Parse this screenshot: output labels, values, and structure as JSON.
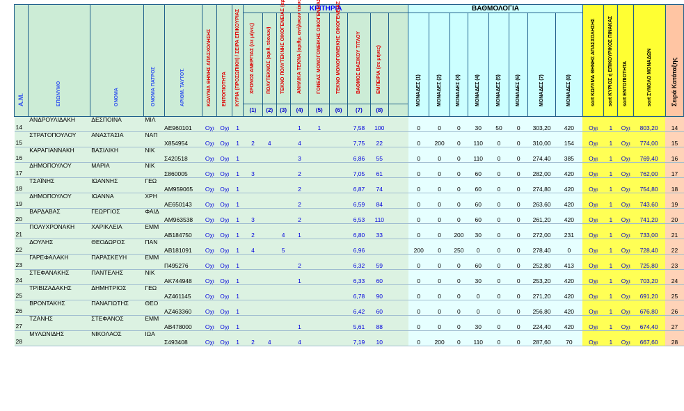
{
  "headers": {
    "am": "Α.Μ.",
    "eponymo": "ΕΠΩΝΥΜΟ",
    "onoma": "ΟΝΟΜΑ",
    "onoma_patros": "ΟΝΟΜΑ ΠΑΤΡΟΣ",
    "arith_taut": "ΑΡΙΘΜ. ΤΑΥΤΟΤ.",
    "kolyma": "ΚΩΛΥΜΑ ΘΗΝΗΣ ΑΠΑΣΧΟΛΗΣΗΣ",
    "entopiotita": "ΕΝΤΟΠΙΟΤΗΤΑ",
    "kyria": "ΚΥΡΙΑ (ΠΡΟΣΩΠΙΚΗ) / ΣΕΙΡΑ ΕΠΙΚΟΥΡΙΑΣ",
    "kritiria_group": "ΚΡΙΤΗΡΙΑ",
    "vathmologia_group": "ΒΑΘΜΟΛΟΓΙΑ",
    "krit": [
      "ΧΡΟΝΟΣ ΑΝΕΡΓΙΑΣ (σε μήνες)",
      "ΠΟΛΥΤΕΚΝΟΣ (αριθ. τέκνων)",
      "ΤΕΚΝΟ ΠΟΛΥΤΕΚΝΗΣ ΟΙΚΟΓΕΝΕΙΑΣ (αρ. τέκνων)",
      "ΑΝΗΛΙΚΑ ΤΕΚΝΑ (αριθμ. ανήλικων τέκνων)",
      "ΓΟΝΕΑΣ ΜΟΝΟΓΟΝΕΙΚΗΣ ΟΙΚΟΓΕΝΕΙΑΣ (αριθμ. τέκνων)",
      "ΤΕΚΝΟ ΜΟΝΟΓΟΝΕΙΚΗΣ ΟΙΚΟΓΕΝΕΙΑΣ",
      "ΒΑΘΜΟΣ ΒΑΣΙΚΟΥ ΤΙΤΛΟΥ",
      "ΕΜΠΕΙΡΙΑ (σε μήνες)"
    ],
    "krit_nums": [
      "(1)",
      "(2)",
      "(3)",
      "(4)",
      "(5)",
      "(6)",
      "(7)",
      "(8)"
    ],
    "monades": [
      "ΜΟΝΑΔΕΣ (1)",
      "ΜΟΝΑΔΕΣ (2)",
      "ΜΟΝΑΔΕΣ (3)",
      "ΜΟΝΑΔΕΣ (4)",
      "ΜΟΝΑΔΕΣ (5)",
      "ΜΟΝΑΔΕΣ (6)",
      "ΜΟΝΑΔΕΣ (7)",
      "ΜΟΝΑΔΕΣ (8)"
    ],
    "sort_kolyma": "sort ΚΩΛΥΜΑ ΘΗΝΗΣ ΑΠΑΣΧΟΛΗΣΗΣ",
    "sort_kyrios": "sort ΚΥΡΙΟΣ ή ΕΠΙΚΟΥΡΙΚΟΣ ΠΙΝΑΚΑΣ",
    "sort_entop": "sort ΕΝΤΟΠΙΟΤΗΤΑ",
    "sort_synolo": "sort ΣΥΝΟΛΟ ΜΟΝΑΔΩΝ",
    "seira": "Σειρά Κατάταξης"
  },
  "rows": [
    {
      "am": "14",
      "epon": "ΑΝΔΡΟΥΛΙΔΑΚΗ",
      "onoma": "ΔΕΣΠΟΙΝΑ",
      "patros": "ΜΙΛ",
      "taut": "ΑΕ960101",
      "kol": "Οχι",
      "ent": "Οχι",
      "kyr": "1",
      "k1": "",
      "k2": "",
      "k3": "",
      "k4": "1",
      "k5": "1",
      "k6": "",
      "k7": "7,58",
      "k8": "100",
      "m1": "0",
      "m2": "0",
      "m3": "0",
      "m4": "30",
      "m5": "50",
      "m6": "0",
      "m7": "303,20",
      "m8": "420",
      "s1": "Οχι",
      "s2": "1",
      "s3": "Οχι",
      "tot": "803,20",
      "rank": "14"
    },
    {
      "am": "15",
      "epon": "ΣΤΡΑΤΟΠΟΥΛΟΥ",
      "onoma": "ΑΝΑΣΤΑΣΙΑ",
      "patros": "ΝΑΠ",
      "taut": "Χ854954",
      "kol": "Οχι",
      "ent": "Οχι",
      "kyr": "1",
      "k1": "2",
      "k2": "4",
      "k3": "",
      "k4": "4",
      "k5": "",
      "k6": "",
      "k7": "7,75",
      "k8": "22",
      "m1": "0",
      "m2": "200",
      "m3": "0",
      "m4": "110",
      "m5": "0",
      "m6": "0",
      "m7": "310,00",
      "m8": "154",
      "s1": "Οχι",
      "s2": "1",
      "s3": "Οχι",
      "tot": "774,00",
      "rank": "15"
    },
    {
      "am": "16",
      "epon": "ΚΑΡΑΓΙΑΝΝΑΚΗ",
      "onoma": "ΒΑΣΙΛΙΚΗ",
      "patros": "ΝΙΚ",
      "taut": "Σ420518",
      "kol": "Οχι",
      "ent": "Οχι",
      "kyr": "1",
      "k1": "",
      "k2": "",
      "k3": "",
      "k4": "3",
      "k5": "",
      "k6": "",
      "k7": "6,86",
      "k8": "55",
      "m1": "0",
      "m2": "0",
      "m3": "0",
      "m4": "110",
      "m5": "0",
      "m6": "0",
      "m7": "274,40",
      "m8": "385",
      "s1": "Οχι",
      "s2": "1",
      "s3": "Οχι",
      "tot": "769,40",
      "rank": "16"
    },
    {
      "am": "17",
      "epon": "ΔΗΜΟΠΟΥΛΟΥ",
      "onoma": "ΜΑΡΙΑ",
      "patros": "ΝΙΚ",
      "taut": "Σ860005",
      "kol": "Οχι",
      "ent": "Οχι",
      "kyr": "1",
      "k1": "3",
      "k2": "",
      "k3": "",
      "k4": "2",
      "k5": "",
      "k6": "",
      "k7": "7,05",
      "k8": "61",
      "m1": "0",
      "m2": "0",
      "m3": "0",
      "m4": "60",
      "m5": "0",
      "m6": "0",
      "m7": "282,00",
      "m8": "420",
      "s1": "Οχι",
      "s2": "1",
      "s3": "Οχι",
      "tot": "762,00",
      "rank": "17"
    },
    {
      "am": "18",
      "epon": "ΤΣΑΪΝΗΣ",
      "onoma": "ΙΩΑΝΝΗΣ",
      "patros": "ΓΕΩ",
      "taut": "ΑΜ959065",
      "kol": "Οχι",
      "ent": "Οχι",
      "kyr": "1",
      "k1": "",
      "k2": "",
      "k3": "",
      "k4": "2",
      "k5": "",
      "k6": "",
      "k7": "6,87",
      "k8": "74",
      "m1": "0",
      "m2": "0",
      "m3": "0",
      "m4": "60",
      "m5": "0",
      "m6": "0",
      "m7": "274,80",
      "m8": "420",
      "s1": "Οχι",
      "s2": "1",
      "s3": "Οχι",
      "tot": "754,80",
      "rank": "18"
    },
    {
      "am": "19",
      "epon": "ΔΗΜΟΠΟΥΛΟΥ",
      "onoma": "ΙΩΑΝΝΑ",
      "patros": "ΧΡΗ",
      "taut": "ΑΕ650143",
      "kol": "Οχι",
      "ent": "Οχι",
      "kyr": "1",
      "k1": "",
      "k2": "",
      "k3": "",
      "k4": "2",
      "k5": "",
      "k6": "",
      "k7": "6,59",
      "k8": "84",
      "m1": "0",
      "m2": "0",
      "m3": "0",
      "m4": "60",
      "m5": "0",
      "m6": "0",
      "m7": "263,60",
      "m8": "420",
      "s1": "Οχι",
      "s2": "1",
      "s3": "Οχι",
      "tot": "743,60",
      "rank": "19"
    },
    {
      "am": "20",
      "epon": "ΒΑΡΔΑΒΑΣ",
      "onoma": "ΓΕΩΡΓΙΟΣ",
      "patros": "ΦΑΙΔ",
      "taut": "ΑΜ963538",
      "kol": "Οχι",
      "ent": "Οχι",
      "kyr": "1",
      "k1": "3",
      "k2": "",
      "k3": "",
      "k4": "2",
      "k5": "",
      "k6": "",
      "k7": "6,53",
      "k8": "110",
      "m1": "0",
      "m2": "0",
      "m3": "0",
      "m4": "60",
      "m5": "0",
      "m6": "0",
      "m7": "261,20",
      "m8": "420",
      "s1": "Οχι",
      "s2": "1",
      "s3": "Οχι",
      "tot": "741,20",
      "rank": "20"
    },
    {
      "am": "21",
      "epon": "ΠΟΛΥΧΡΟΝΑΚΗ",
      "onoma": "ΧΑΡΙΚΛΕΙΑ",
      "patros": "ΕΜΜ",
      "taut": "ΑΒ184750",
      "kol": "Οχι",
      "ent": "Οχι",
      "kyr": "1",
      "k1": "2",
      "k2": "",
      "k3": "4",
      "k4": "1",
      "k5": "",
      "k6": "",
      "k7": "6,80",
      "k8": "33",
      "m1": "0",
      "m2": "0",
      "m3": "200",
      "m4": "30",
      "m5": "0",
      "m6": "0",
      "m7": "272,00",
      "m8": "231",
      "s1": "Οχι",
      "s2": "1",
      "s3": "Οχι",
      "tot": "733,00",
      "rank": "21"
    },
    {
      "am": "22",
      "epon": "ΔΟΥΛΗΣ",
      "onoma": "ΘΕΟΔΩΡΟΣ",
      "patros": "ΠΑΝ",
      "taut": "ΑΒ181091",
      "kol": "Οχι",
      "ent": "Οχι",
      "kyr": "1",
      "k1": "4",
      "k2": "",
      "k3": "5",
      "k4": "",
      "k5": "",
      "k6": "",
      "k7": "6,96",
      "k8": "",
      "m1": "200",
      "m2": "0",
      "m3": "250",
      "m4": "0",
      "m5": "0",
      "m6": "0",
      "m7": "278,40",
      "m8": "0",
      "s1": "Οχι",
      "s2": "1",
      "s3": "Οχι",
      "tot": "728,40",
      "rank": "22"
    },
    {
      "am": "23",
      "epon": "ΓΑΡΕΦΑΛΑΚΗ",
      "onoma": "ΠΑΡΑΣΚΕΥΗ",
      "patros": "ΕΜΜ",
      "taut": "Π495276",
      "kol": "Οχι",
      "ent": "Οχι",
      "kyr": "1",
      "k1": "",
      "k2": "",
      "k3": "",
      "k4": "2",
      "k5": "",
      "k6": "",
      "k7": "6,32",
      "k8": "59",
      "m1": "0",
      "m2": "0",
      "m3": "0",
      "m4": "60",
      "m5": "0",
      "m6": "0",
      "m7": "252,80",
      "m8": "413",
      "s1": "Οχι",
      "s2": "1",
      "s3": "Οχι",
      "tot": "725,80",
      "rank": "23"
    },
    {
      "am": "24",
      "epon": "ΣΤΕΦΑΝΑΚΗΣ",
      "onoma": "ΠΑΝΤΕΛΗΣ",
      "patros": "ΝΙΚ",
      "taut": "ΑΚ744948",
      "kol": "Οχι",
      "ent": "Οχι",
      "kyr": "1",
      "k1": "",
      "k2": "",
      "k3": "",
      "k4": "1",
      "k5": "",
      "k6": "",
      "k7": "6,33",
      "k8": "60",
      "m1": "0",
      "m2": "0",
      "m3": "0",
      "m4": "30",
      "m5": "0",
      "m6": "0",
      "m7": "253,20",
      "m8": "420",
      "s1": "Οχι",
      "s2": "1",
      "s3": "Οχι",
      "tot": "703,20",
      "rank": "24"
    },
    {
      "am": "25",
      "epon": "ΤΡΙΒΙΖΑΔΑΚΗΣ",
      "onoma": "ΔΗΜΗΤΡΙΟΣ",
      "patros": "ΓΕΩ",
      "taut": "ΑΖ461145",
      "kol": "Οχι",
      "ent": "Οχι",
      "kyr": "1",
      "k1": "",
      "k2": "",
      "k3": "",
      "k4": "",
      "k5": "",
      "k6": "",
      "k7": "6,78",
      "k8": "90",
      "m1": "0",
      "m2": "0",
      "m3": "0",
      "m4": "0",
      "m5": "0",
      "m6": "0",
      "m7": "271,20",
      "m8": "420",
      "s1": "Οχι",
      "s2": "1",
      "s3": "Οχι",
      "tot": "691,20",
      "rank": "25"
    },
    {
      "am": "26",
      "epon": "ΒΡΟΝΤΑΚΗΣ",
      "onoma": "ΠΑΝΑΓΙΩΤΗΣ",
      "patros": "ΘΕΟ",
      "taut": "ΑΖ463360",
      "kol": "Οχι",
      "ent": "Οχι",
      "kyr": "1",
      "k1": "",
      "k2": "",
      "k3": "",
      "k4": "",
      "k5": "",
      "k6": "",
      "k7": "6,42",
      "k8": "60",
      "m1": "0",
      "m2": "0",
      "m3": "0",
      "m4": "0",
      "m5": "0",
      "m6": "0",
      "m7": "256,80",
      "m8": "420",
      "s1": "Οχι",
      "s2": "1",
      "s3": "Οχι",
      "tot": "676,80",
      "rank": "26"
    },
    {
      "am": "27",
      "epon": "ΤΖΑΝΗΣ",
      "onoma": "ΣΤΕΦΑΝΟΣ",
      "patros": "ΕΜΜ",
      "taut": "ΑΒ478000",
      "kol": "Οχι",
      "ent": "Οχι",
      "kyr": "1",
      "k1": "",
      "k2": "",
      "k3": "",
      "k4": "1",
      "k5": "",
      "k6": "",
      "k7": "5,61",
      "k8": "88",
      "m1": "0",
      "m2": "0",
      "m3": "0",
      "m4": "30",
      "m5": "0",
      "m6": "0",
      "m7": "224,40",
      "m8": "420",
      "s1": "Οχι",
      "s2": "1",
      "s3": "Οχι",
      "tot": "674,40",
      "rank": "27"
    },
    {
      "am": "28",
      "epon": "ΜΥΛΩΝΙΔΗΣ",
      "onoma": "ΝΙΚΟΛΑΟΣ",
      "patros": "ΙΩΑ",
      "taut": "Σ493408",
      "kol": "Οχι",
      "ent": "Οχι",
      "kyr": "1",
      "k1": "2",
      "k2": "4",
      "k3": "",
      "k4": "4",
      "k5": "",
      "k6": "",
      "k7": "7,19",
      "k8": "10",
      "m1": "0",
      "m2": "200",
      "m3": "0",
      "m4": "110",
      "m5": "0",
      "m6": "0",
      "m7": "287,60",
      "m8": "70",
      "s1": "Οχι",
      "s2": "1",
      "s3": "Οχι",
      "tot": "667,60",
      "rank": "28"
    }
  ]
}
